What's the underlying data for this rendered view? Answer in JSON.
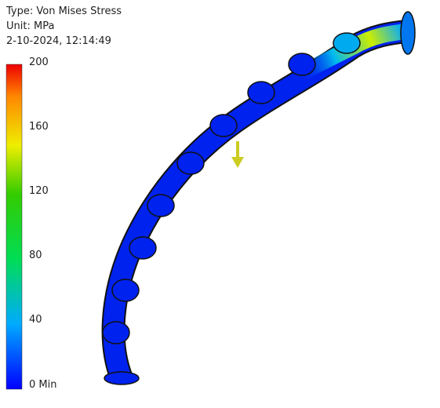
{
  "header": {
    "type_line": "Type: Von Mises Stress",
    "unit": "Unit: MPa",
    "date": "2-10-2024, 12:14:49"
  },
  "legend": {
    "labels": [
      "200",
      "160",
      "120",
      "80",
      "40",
      "0 Min"
    ]
  }
}
